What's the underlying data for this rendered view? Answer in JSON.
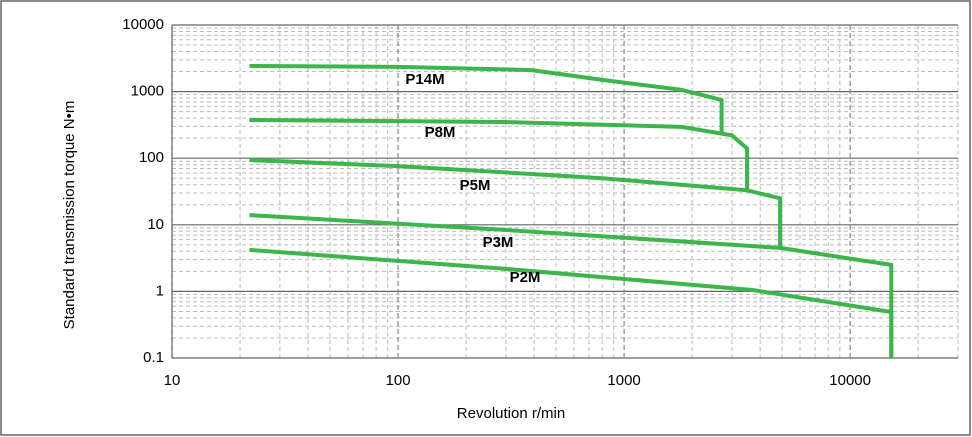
{
  "chart_data": {
    "type": "line",
    "x_label": "Revolution r/min",
    "y_label": "Standard transmission torque N•m",
    "xscale": "log",
    "yscale": "log",
    "xlim": [
      10,
      30000
    ],
    "ylim": [
      0.1,
      10000
    ],
    "xticks": [
      10,
      100,
      1000,
      10000
    ],
    "yticks": [
      0.1,
      1,
      10,
      100,
      1000,
      10000
    ],
    "grid": true,
    "series": [
      {
        "name": "P14M",
        "color": "#3cb54a",
        "x": [
          22,
          100,
          390,
          800,
          1800,
          2700,
          2700
        ],
        "values": [
          2420,
          2350,
          2100,
          1500,
          1060,
          750,
          220
        ]
      },
      {
        "name": "P8M",
        "color": "#3cb54a",
        "x": [
          22,
          290,
          1800,
          3000,
          3500,
          3500
        ],
        "values": [
          375,
          350,
          295,
          220,
          140,
          33
        ]
      },
      {
        "name": "P5M",
        "color": "#3cb54a",
        "x": [
          22,
          100,
          800,
          3500,
          4900,
          4900
        ],
        "values": [
          94,
          76,
          50,
          33,
          25,
          4.5
        ]
      },
      {
        "name": "P3M",
        "color": "#3cb54a",
        "x": [
          22,
          290,
          4900,
          15200,
          15200
        ],
        "values": [
          14,
          8.4,
          4.5,
          2.5,
          0.1
        ]
      },
      {
        "name": "P2M",
        "color": "#3cb54a",
        "x": [
          22,
          290,
          3700,
          15200,
          15200
        ],
        "values": [
          4.2,
          2.2,
          1.05,
          0.49,
          0.1
        ]
      }
    ]
  }
}
